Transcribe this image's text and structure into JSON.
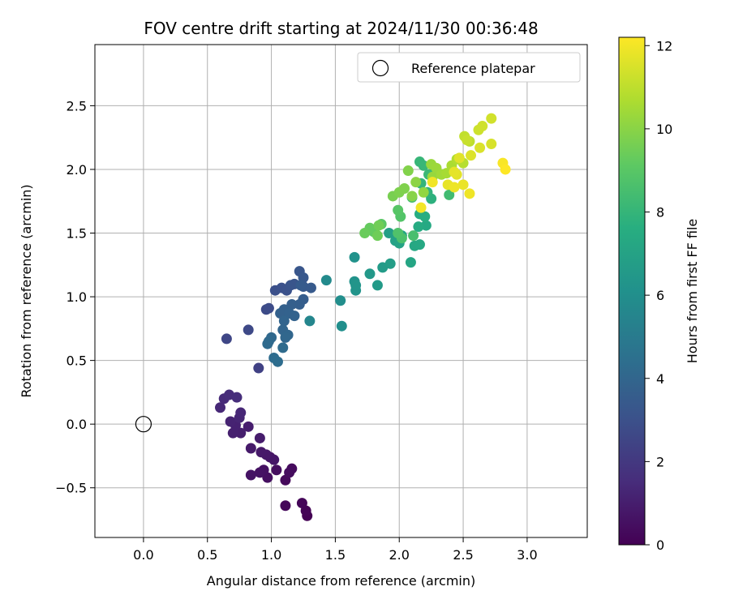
{
  "chart_data": {
    "type": "scatter",
    "title": "FOV centre drift starting at 2024/11/30 00:36:48",
    "xlabel": "Angular distance from reference (arcmin)",
    "ylabel": "Rotation from reference (arcmin)",
    "xlim": [
      -0.38,
      3.47
    ],
    "ylim": [
      -0.89,
      2.98
    ],
    "xticks": [
      0.0,
      0.5,
      1.0,
      1.5,
      2.0,
      2.5,
      3.0
    ],
    "xtick_labels": [
      "0.0",
      "0.5",
      "1.0",
      "1.5",
      "2.0",
      "2.5",
      "3.0"
    ],
    "yticks": [
      -0.5,
      0.0,
      0.5,
      1.0,
      1.5,
      2.0,
      2.5
    ],
    "ytick_labels": [
      "−0.5",
      "0.0",
      "0.5",
      "1.0",
      "1.5",
      "2.0",
      "2.5"
    ],
    "grid": true,
    "legend": {
      "position": "top-right",
      "entries": [
        "Reference platepar"
      ]
    },
    "reference_point": {
      "x": 0.0,
      "y": 0.0,
      "label": "Reference platepar"
    },
    "colorbar": {
      "label": "Hours from first FF file",
      "min": 0,
      "max": 12.2,
      "ticks": [
        0,
        2,
        4,
        6,
        8,
        10,
        12
      ],
      "tick_labels": [
        "0",
        "2",
        "4",
        "6",
        "8",
        "10",
        "12"
      ],
      "colormap": "viridis"
    },
    "points": [
      {
        "x": 1.28,
        "y": -0.72,
        "h": 0.0
      },
      {
        "x": 1.27,
        "y": -0.68,
        "h": 0.1
      },
      {
        "x": 1.24,
        "y": -0.62,
        "h": 0.15
      },
      {
        "x": 1.11,
        "y": -0.64,
        "h": 0.2
      },
      {
        "x": 1.11,
        "y": -0.44,
        "h": 0.3
      },
      {
        "x": 1.16,
        "y": -0.35,
        "h": 0.35
      },
      {
        "x": 1.14,
        "y": -0.38,
        "h": 0.4
      },
      {
        "x": 1.04,
        "y": -0.36,
        "h": 0.45
      },
      {
        "x": 0.97,
        "y": -0.42,
        "h": 0.5
      },
      {
        "x": 0.94,
        "y": -0.36,
        "h": 0.55
      },
      {
        "x": 0.91,
        "y": -0.38,
        "h": 0.6
      },
      {
        "x": 0.84,
        "y": -0.4,
        "h": 0.65
      },
      {
        "x": 0.99,
        "y": -0.26,
        "h": 0.7
      },
      {
        "x": 1.02,
        "y": -0.28,
        "h": 0.75
      },
      {
        "x": 0.96,
        "y": -0.24,
        "h": 0.8
      },
      {
        "x": 0.92,
        "y": -0.22,
        "h": 0.85
      },
      {
        "x": 0.84,
        "y": -0.19,
        "h": 0.9
      },
      {
        "x": 0.91,
        "y": -0.11,
        "h": 0.95
      },
      {
        "x": 0.82,
        "y": -0.02,
        "h": 1.0
      },
      {
        "x": 0.76,
        "y": -0.07,
        "h": 1.05
      },
      {
        "x": 0.7,
        "y": -0.07,
        "h": 1.1
      },
      {
        "x": 0.72,
        "y": -0.01,
        "h": 1.15
      },
      {
        "x": 0.68,
        "y": 0.02,
        "h": 1.2
      },
      {
        "x": 0.75,
        "y": 0.05,
        "h": 1.3
      },
      {
        "x": 0.76,
        "y": 0.09,
        "h": 1.35
      },
      {
        "x": 0.6,
        "y": 0.13,
        "h": 1.4
      },
      {
        "x": 0.63,
        "y": 0.2,
        "h": 1.5
      },
      {
        "x": 0.67,
        "y": 0.23,
        "h": 1.55
      },
      {
        "x": 0.73,
        "y": 0.21,
        "h": 1.6
      },
      {
        "x": 0.9,
        "y": 0.44,
        "h": 2.4
      },
      {
        "x": 0.65,
        "y": 0.67,
        "h": 2.6
      },
      {
        "x": 0.82,
        "y": 0.74,
        "h": 2.7
      },
      {
        "x": 0.96,
        "y": 0.9,
        "h": 2.8
      },
      {
        "x": 0.98,
        "y": 0.91,
        "h": 2.85
      },
      {
        "x": 1.03,
        "y": 1.05,
        "h": 3.0
      },
      {
        "x": 1.08,
        "y": 1.07,
        "h": 3.05
      },
      {
        "x": 1.12,
        "y": 1.05,
        "h": 3.1
      },
      {
        "x": 1.15,
        "y": 1.09,
        "h": 3.2
      },
      {
        "x": 1.18,
        "y": 1.1,
        "h": 3.25
      },
      {
        "x": 1.22,
        "y": 1.2,
        "h": 3.3
      },
      {
        "x": 1.25,
        "y": 1.15,
        "h": 3.4
      },
      {
        "x": 1.25,
        "y": 1.08,
        "h": 3.45
      },
      {
        "x": 1.31,
        "y": 1.07,
        "h": 3.5
      },
      {
        "x": 1.23,
        "y": 1.09,
        "h": 3.55
      },
      {
        "x": 1.25,
        "y": 0.98,
        "h": 3.6
      },
      {
        "x": 1.22,
        "y": 0.94,
        "h": 3.65
      },
      {
        "x": 1.16,
        "y": 0.94,
        "h": 3.7
      },
      {
        "x": 1.1,
        "y": 0.9,
        "h": 3.75
      },
      {
        "x": 1.07,
        "y": 0.87,
        "h": 3.8
      },
      {
        "x": 1.14,
        "y": 0.87,
        "h": 3.85
      },
      {
        "x": 1.18,
        "y": 0.85,
        "h": 3.9
      },
      {
        "x": 1.1,
        "y": 0.81,
        "h": 3.95
      },
      {
        "x": 1.09,
        "y": 0.74,
        "h": 4.0
      },
      {
        "x": 1.13,
        "y": 0.7,
        "h": 4.05
      },
      {
        "x": 1.11,
        "y": 0.68,
        "h": 4.1
      },
      {
        "x": 1.0,
        "y": 0.68,
        "h": 4.15
      },
      {
        "x": 0.98,
        "y": 0.65,
        "h": 4.2
      },
      {
        "x": 0.97,
        "y": 0.63,
        "h": 4.25
      },
      {
        "x": 1.09,
        "y": 0.6,
        "h": 4.3
      },
      {
        "x": 1.02,
        "y": 0.52,
        "h": 4.35
      },
      {
        "x": 1.05,
        "y": 0.49,
        "h": 4.4
      },
      {
        "x": 1.3,
        "y": 0.81,
        "h": 5.6
      },
      {
        "x": 1.43,
        "y": 1.13,
        "h": 5.8
      },
      {
        "x": 1.54,
        "y": 0.97,
        "h": 6.0
      },
      {
        "x": 1.55,
        "y": 0.77,
        "h": 6.05
      },
      {
        "x": 1.65,
        "y": 1.31,
        "h": 6.2
      },
      {
        "x": 1.65,
        "y": 1.12,
        "h": 6.25
      },
      {
        "x": 1.66,
        "y": 1.05,
        "h": 6.3
      },
      {
        "x": 1.66,
        "y": 1.09,
        "h": 6.35
      },
      {
        "x": 1.77,
        "y": 1.18,
        "h": 6.5
      },
      {
        "x": 1.83,
        "y": 1.09,
        "h": 6.6
      },
      {
        "x": 1.87,
        "y": 1.23,
        "h": 6.7
      },
      {
        "x": 1.93,
        "y": 1.26,
        "h": 6.8
      },
      {
        "x": 1.92,
        "y": 1.5,
        "h": 6.9
      },
      {
        "x": 1.97,
        "y": 1.44,
        "h": 7.0
      },
      {
        "x": 2.0,
        "y": 1.42,
        "h": 7.1
      },
      {
        "x": 2.02,
        "y": 1.48,
        "h": 7.15
      },
      {
        "x": 2.09,
        "y": 1.27,
        "h": 7.2
      },
      {
        "x": 2.12,
        "y": 1.4,
        "h": 7.3
      },
      {
        "x": 2.16,
        "y": 1.41,
        "h": 7.35
      },
      {
        "x": 2.21,
        "y": 1.56,
        "h": 7.4
      },
      {
        "x": 2.15,
        "y": 1.55,
        "h": 7.5
      },
      {
        "x": 2.16,
        "y": 1.65,
        "h": 7.6
      },
      {
        "x": 2.2,
        "y": 1.63,
        "h": 7.65
      },
      {
        "x": 2.25,
        "y": 1.77,
        "h": 7.8
      },
      {
        "x": 2.22,
        "y": 1.82,
        "h": 7.9
      },
      {
        "x": 2.17,
        "y": 1.89,
        "h": 8.0
      },
      {
        "x": 2.16,
        "y": 2.06,
        "h": 8.1
      },
      {
        "x": 2.19,
        "y": 2.03,
        "h": 8.15
      },
      {
        "x": 2.23,
        "y": 1.96,
        "h": 8.2
      },
      {
        "x": 2.27,
        "y": 1.97,
        "h": 8.3
      },
      {
        "x": 2.39,
        "y": 1.8,
        "h": 8.4
      },
      {
        "x": 2.1,
        "y": 1.78,
        "h": 8.5
      },
      {
        "x": 2.11,
        "y": 1.48,
        "h": 8.6
      },
      {
        "x": 2.02,
        "y": 1.46,
        "h": 8.7
      },
      {
        "x": 1.99,
        "y": 1.5,
        "h": 8.8
      },
      {
        "x": 2.01,
        "y": 1.63,
        "h": 8.9
      },
      {
        "x": 1.99,
        "y": 1.68,
        "h": 9.0
      },
      {
        "x": 1.86,
        "y": 1.57,
        "h": 9.1
      },
      {
        "x": 1.8,
        "y": 1.51,
        "h": 9.2
      },
      {
        "x": 1.77,
        "y": 1.54,
        "h": 9.3
      },
      {
        "x": 1.73,
        "y": 1.5,
        "h": 9.4
      },
      {
        "x": 1.83,
        "y": 1.48,
        "h": 9.5
      },
      {
        "x": 1.84,
        "y": 1.56,
        "h": 9.55
      },
      {
        "x": 1.95,
        "y": 1.79,
        "h": 9.7
      },
      {
        "x": 2.0,
        "y": 1.82,
        "h": 9.8
      },
      {
        "x": 2.04,
        "y": 1.85,
        "h": 9.85
      },
      {
        "x": 2.07,
        "y": 1.99,
        "h": 9.9
      },
      {
        "x": 2.1,
        "y": 1.79,
        "h": 10.0
      },
      {
        "x": 2.13,
        "y": 1.9,
        "h": 10.1
      },
      {
        "x": 2.19,
        "y": 1.82,
        "h": 10.2
      },
      {
        "x": 2.26,
        "y": 1.94,
        "h": 10.3
      },
      {
        "x": 2.25,
        "y": 2.04,
        "h": 10.35
      },
      {
        "x": 2.29,
        "y": 2.01,
        "h": 10.4
      },
      {
        "x": 2.33,
        "y": 1.96,
        "h": 10.5
      },
      {
        "x": 2.37,
        "y": 1.97,
        "h": 10.6
      },
      {
        "x": 2.41,
        "y": 2.03,
        "h": 10.7
      },
      {
        "x": 2.45,
        "y": 2.08,
        "h": 10.8
      },
      {
        "x": 2.5,
        "y": 2.05,
        "h": 10.9
      },
      {
        "x": 2.55,
        "y": 2.22,
        "h": 11.0
      },
      {
        "x": 2.51,
        "y": 2.26,
        "h": 11.1
      },
      {
        "x": 2.53,
        "y": 2.23,
        "h": 11.2
      },
      {
        "x": 2.62,
        "y": 2.31,
        "h": 11.3
      },
      {
        "x": 2.65,
        "y": 2.34,
        "h": 11.35
      },
      {
        "x": 2.72,
        "y": 2.4,
        "h": 11.4
      },
      {
        "x": 2.72,
        "y": 2.2,
        "h": 11.5
      },
      {
        "x": 2.63,
        "y": 2.17,
        "h": 11.55
      },
      {
        "x": 2.56,
        "y": 2.11,
        "h": 11.6
      },
      {
        "x": 2.47,
        "y": 2.09,
        "h": 11.65
      },
      {
        "x": 2.45,
        "y": 1.96,
        "h": 11.7
      },
      {
        "x": 2.43,
        "y": 1.98,
        "h": 11.75
      },
      {
        "x": 2.38,
        "y": 1.88,
        "h": 11.8
      },
      {
        "x": 2.5,
        "y": 1.88,
        "h": 11.85
      },
      {
        "x": 2.43,
        "y": 1.86,
        "h": 11.9
      },
      {
        "x": 2.55,
        "y": 1.81,
        "h": 11.95
      },
      {
        "x": 2.26,
        "y": 1.9,
        "h": 11.98
      },
      {
        "x": 2.17,
        "y": 1.7,
        "h": 12.0
      },
      {
        "x": 2.81,
        "y": 2.05,
        "h": 12.1
      },
      {
        "x": 2.83,
        "y": 2.0,
        "h": 12.2
      }
    ]
  }
}
